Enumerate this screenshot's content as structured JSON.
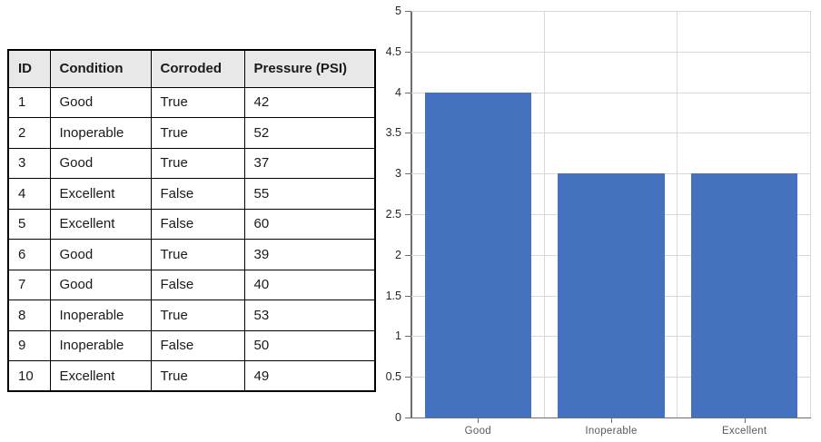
{
  "table": {
    "headers": [
      "ID",
      "Condition",
      "Corroded",
      "Pressure (PSI)"
    ],
    "rows": [
      [
        "1",
        "Good",
        "True",
        "42"
      ],
      [
        "2",
        "Inoperable",
        "True",
        "52"
      ],
      [
        "3",
        "Good",
        "True",
        "37"
      ],
      [
        "4",
        "Excellent",
        "False",
        "55"
      ],
      [
        "5",
        "Excellent",
        "False",
        "60"
      ],
      [
        "6",
        "Good",
        "True",
        "39"
      ],
      [
        "7",
        "Good",
        "False",
        "40"
      ],
      [
        "8",
        "Inoperable",
        "True",
        "53"
      ],
      [
        "9",
        "Inoperable",
        "False",
        "50"
      ],
      [
        "10",
        "Excellent",
        "True",
        "49"
      ]
    ]
  },
  "chart_data": {
    "type": "bar",
    "categories": [
      "Good",
      "Inoperable",
      "Excellent"
    ],
    "values": [
      4,
      3,
      3
    ],
    "title": "",
    "xlabel": "",
    "ylabel": "",
    "ylim": [
      0,
      5
    ],
    "ytick_step": 0.5,
    "ytick_labels": [
      "0",
      "0.5",
      "1",
      "1.5",
      "2",
      "2.5",
      "3",
      "3.5",
      "4",
      "4.5",
      "5"
    ],
    "grid": true,
    "legend": false,
    "bar_band_fill_ratio": 0.8
  },
  "colors": {
    "bar": "#4472BE",
    "table_header_bg": "#E8E8E8",
    "table_border": "#000000",
    "grid_line": "#D9D9D9",
    "axis_line": "#6E6E6E",
    "y_tick_label": "#262626",
    "x_tick_label": "#595959"
  }
}
